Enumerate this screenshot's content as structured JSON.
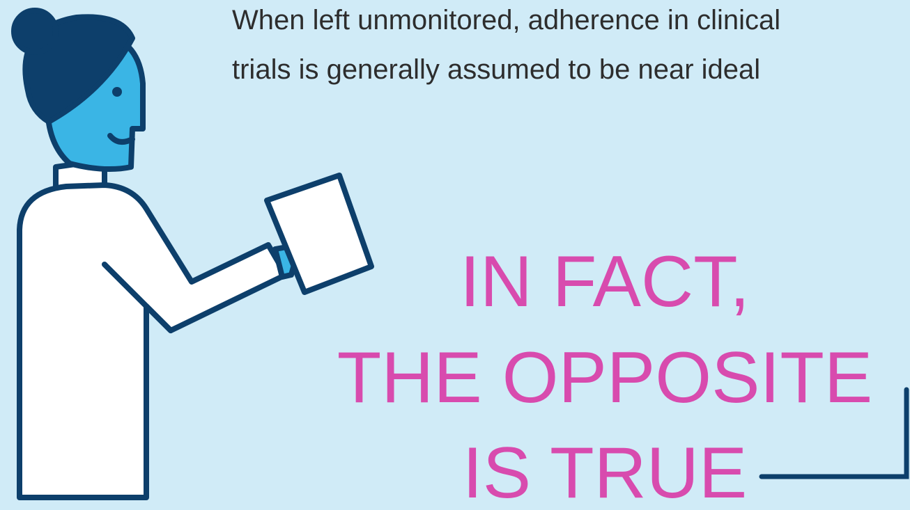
{
  "intro": {
    "lines": [
      "When left unmonitored, adherence in clinical",
      "trials is generally assumed to be near ideal"
    ]
  },
  "headline": {
    "lines": [
      "IN FACT,",
      "THE OPPOSITE",
      "IS TRUE"
    ]
  }
}
